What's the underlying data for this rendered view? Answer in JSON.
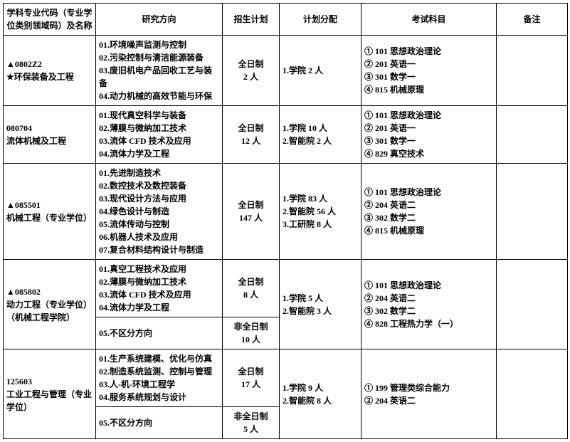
{
  "headers": [
    "学科专业代码（专业学位类别领域码）及名称",
    "研究方向",
    "招生计划",
    "计划分配",
    "考试科目",
    "备注"
  ],
  "rows": [
    {
      "col1": "▲0802Z2\n★环保装备及工程",
      "col2": "01.环境噪声监测与控制\n02.污染控制与清洁能源装备\n03.废旧机电产品回收工艺与装备\n04.动力机械的高效节能与环保",
      "col3": "全日制\n2 人",
      "col4": "1.学院 2 人",
      "col5": "① 101 思想政治理论\n② 201 英语一\n③ 301 数学一\n④ 815 机械原理",
      "col6": ""
    },
    {
      "col1": "080704\n流体机械及工程",
      "col2": "01.现代真空科学与装备\n02.薄膜与微纳加工技术\n03.流体 CFD 技术及应用\n04.流体力学及工程",
      "col3": "全日制\n12 人",
      "col4": "1.学院 10 人\n2.智能院 2 人",
      "col5": "① 101 思想政治理论\n② 201 英语一\n③ 301 数学一\n④ 829 真空技术",
      "col6": ""
    },
    {
      "col1": "▲085501\n机械工程（专业学位）",
      "col2": "01.先进制造技术\n02.数控技术及数控装备\n03.现代设计方法与应用\n04.绿色设计与制造\n05.流体传动与控制\n06.机器人技术及应用\n07.复合材料结构设计与制造",
      "col3": "全日制\n147 人",
      "col4": "1.学院 83 人\n2.智能院 56 人\n3.工研院 8 人",
      "col5": "① 101 思想政治理论\n② 204 英语二\n③ 302 数学二\n④ 815 机械原理",
      "col6": ""
    },
    {
      "col1": "▲085802\n动力工程（专业学位）\n（机械工程学院）",
      "col2": "01.真空工程技术及应用\n02.薄膜与微纳加工技术\n03.流体 CFD 技术及应用\n04.流体力学及工程",
      "col3": "全日制\n8 人",
      "col4": "1.学院 5 人\n2.智能院 3 人",
      "col5": "① 101 思想政治理论\n② 204 英语二\n③ 302 数学二\n④ 828 工程热力学（一）",
      "col6": ""
    },
    {
      "col1": "",
      "col2": "05.不区分方向",
      "col3": "非全日制\n10 人",
      "col4": "",
      "col5": "",
      "col6": ""
    },
    {
      "col1": "125603\n工业工程与管理（专业学位）",
      "col2": "01.生产系统建模、优化与仿真\n02.制造系统监测、控制与管理\n03.人-机-环境工程学\n04.服务系统规划与设计",
      "col3": "全日制\n17 人",
      "col4": "1.学院 9 人\n2.智能院 8 人",
      "col5": "① 199 管理类综合能力\n② 204 英语二",
      "col6": ""
    },
    {
      "col1": "",
      "col2": "05.不区分方向",
      "col3": "非全日制\n5 人",
      "col4": "",
      "col5": "",
      "col6": ""
    }
  ],
  "row4_span": true,
  "row6_span": true
}
